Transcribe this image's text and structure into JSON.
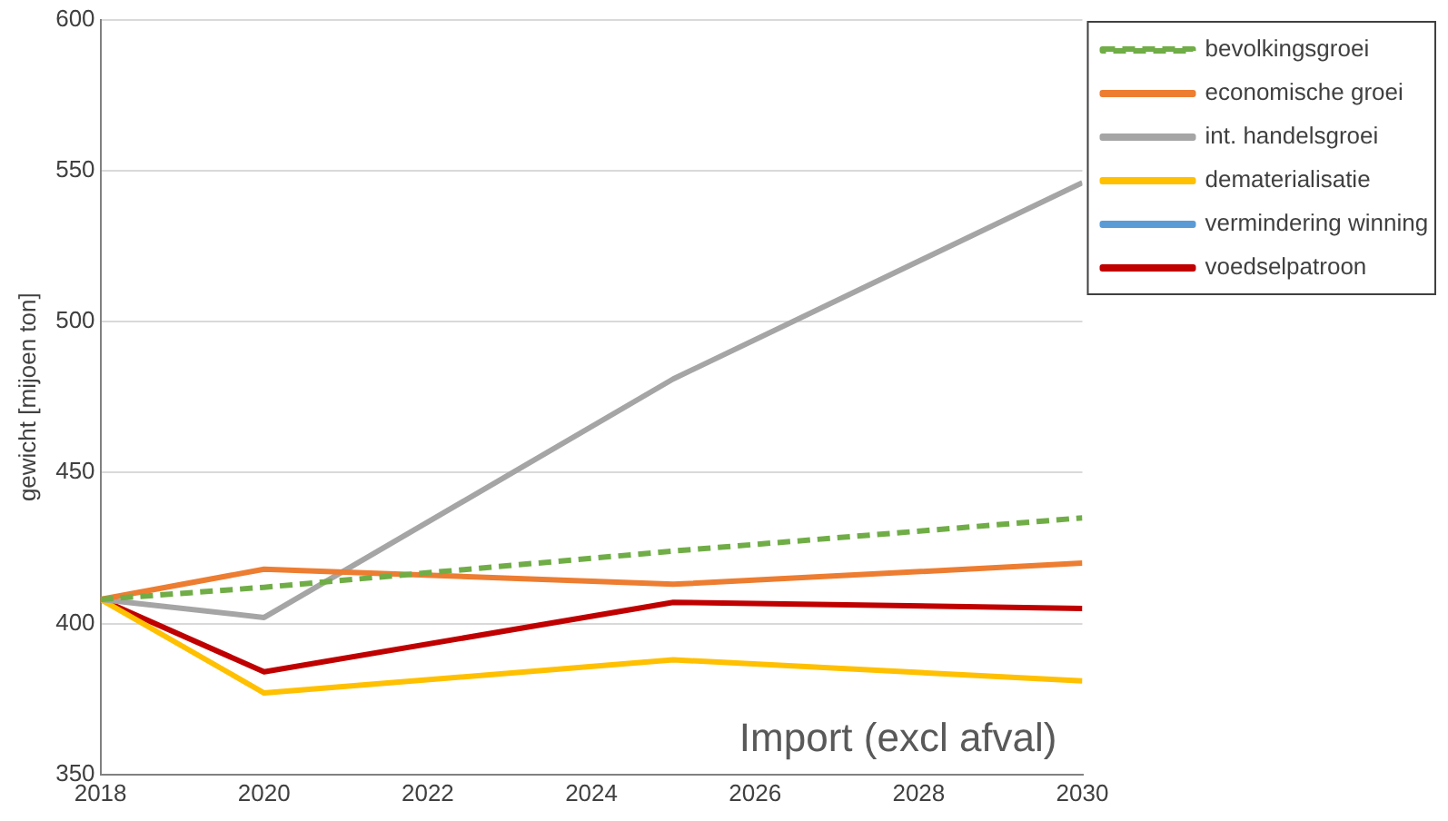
{
  "chart_data": {
    "type": "line",
    "ylabel": "gewicht [mijoen ton]",
    "annotations": [
      "Import (excl afval)"
    ],
    "x": [
      2018,
      2020,
      2025,
      2030
    ],
    "series": [
      {
        "name": "bevolkingsgroei",
        "color": "#70ad47",
        "line_style": "dashed",
        "values": [
          408,
          412,
          424,
          435
        ]
      },
      {
        "name": "economische groei",
        "color": "#ed7d31",
        "values": [
          408,
          418,
          413,
          420
        ]
      },
      {
        "name": "int. handelsgroei",
        "color": "#a5a5a5",
        "values": [
          408,
          402,
          481,
          546
        ]
      },
      {
        "name": "dematerialisatie",
        "color": "#ffc000",
        "values": [
          408,
          377,
          388,
          381
        ]
      },
      {
        "name": "vermindering winning",
        "color": "#5b9bd5",
        "values": [
          null,
          null,
          null,
          null
        ]
      },
      {
        "name": "voedselpatroon",
        "color": "#c00000",
        "values": [
          408,
          384,
          407,
          405
        ]
      }
    ],
    "xlim": [
      2018,
      2030
    ],
    "xticks": [
      2018,
      2020,
      2022,
      2024,
      2026,
      2028,
      2030
    ],
    "ylim": [
      350,
      600
    ],
    "yticks": [
      350,
      400,
      450,
      500,
      550,
      600
    ],
    "grid": "y",
    "legend": "top right",
    "marker": "none"
  }
}
